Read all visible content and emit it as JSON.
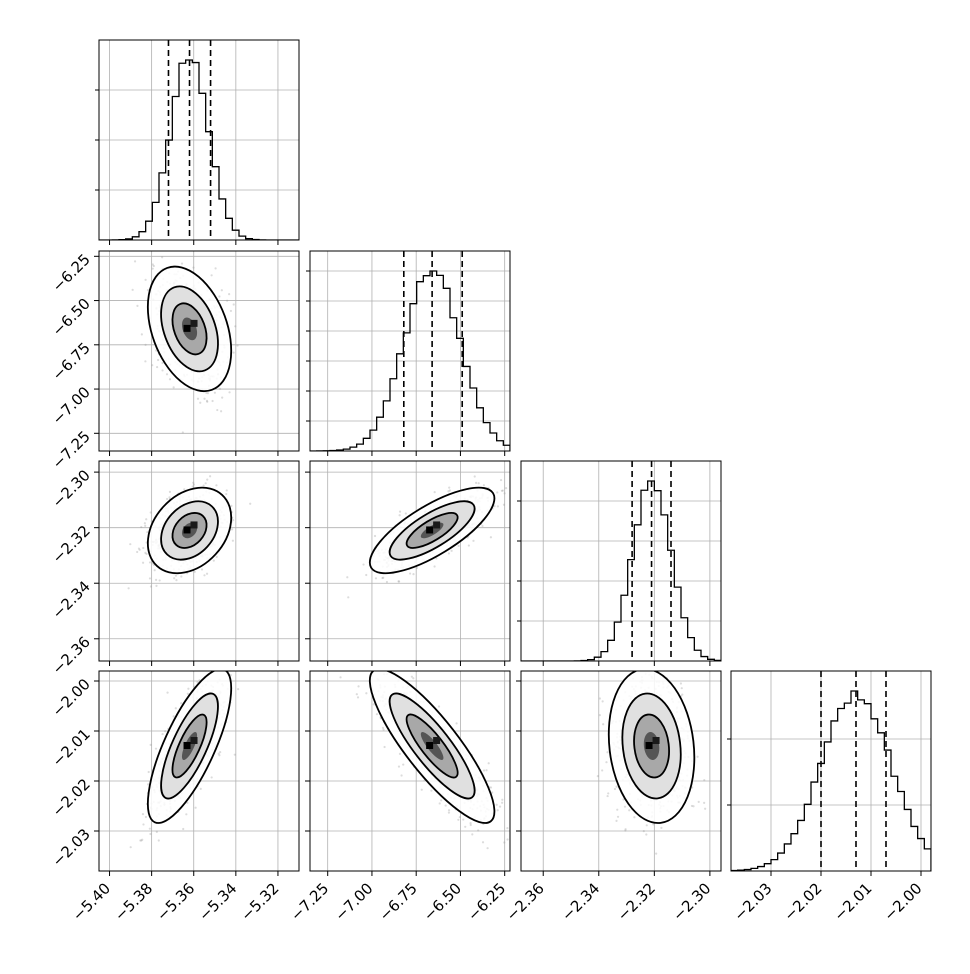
{
  "chart_data": {
    "type": "corner",
    "grid": true,
    "legend": "none",
    "colors": {
      "axis": "#000000",
      "grid": "#b0b0b0",
      "scatter": "#9a9a9a",
      "density_dark": "#000000",
      "density_light": "#f2f2f2"
    },
    "parameters": [
      {
        "range": [
          -5.405,
          -5.31
        ],
        "ticks": [
          -5.4,
          -5.38,
          -5.36,
          -5.34,
          -5.32
        ],
        "tick_labels": [
          "−5.40",
          "−5.38",
          "−5.36",
          "−5.34",
          "−5.32"
        ],
        "mean": -5.362,
        "sd": 0.009,
        "quantiles": [
          -5.372,
          -5.362,
          -5.352
        ]
      },
      {
        "range": [
          -7.35,
          -6.22
        ],
        "ticks": [
          -7.25,
          -7.0,
          -6.75,
          -6.5,
          -6.25
        ],
        "tick_labels": [
          "−7.25",
          "−7.00",
          "−6.75",
          "−6.50",
          "−6.25"
        ],
        "mean": -6.66,
        "sd": 0.16,
        "quantiles": [
          -6.82,
          -6.66,
          -6.49
        ]
      },
      {
        "range": [
          -2.368,
          -2.296
        ],
        "ticks": [
          -2.36,
          -2.34,
          -2.32,
          -2.3
        ],
        "tick_labels": [
          "−2.36",
          "−2.34",
          "−2.32",
          "−2.30"
        ],
        "mean": -2.321,
        "sd": 0.007,
        "quantiles": [
          -2.328,
          -2.321,
          -2.314
        ]
      },
      {
        "range": [
          -2.038,
          -1.998
        ],
        "ticks": [
          -2.03,
          -2.02,
          -2.01,
          -2.0
        ],
        "tick_labels": [
          "−2.03",
          "−2.02",
          "−2.01",
          "−2.00"
        ],
        "mean": -2.013,
        "sd": 0.007,
        "quantiles": [
          -2.02,
          -2.013,
          -2.007
        ]
      }
    ],
    "correlations": {
      "1-0": -0.35,
      "2-0": 0.3,
      "2-1": 0.75,
      "3-0": 0.75,
      "3-1": -0.85,
      "3-2": -0.15
    },
    "hist_ticks": {
      "0": [
        0.25,
        0.5,
        0.75
      ],
      "1": [
        0.15,
        0.3,
        0.45,
        0.6,
        0.75,
        0.9
      ],
      "2": [
        0.2,
        0.4,
        0.6,
        0.8
      ],
      "3": [
        0.33,
        0.66
      ]
    }
  }
}
